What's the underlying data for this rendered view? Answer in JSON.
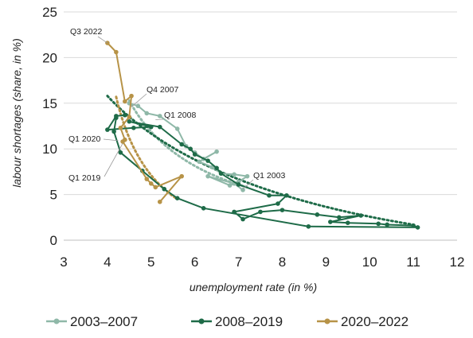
{
  "chart_data": {
    "type": "scatter",
    "xlabel": "unemployment rate (in %)",
    "ylabel": "labour shortages (share, in %)",
    "xlim": [
      3,
      12
    ],
    "ylim": [
      0,
      25
    ],
    "x_ticks": [
      "3",
      "4",
      "5",
      "6",
      "7",
      "8",
      "9",
      "10",
      "11",
      "12"
    ],
    "y_ticks": [
      "0",
      "5",
      "10",
      "15",
      "20",
      "25"
    ],
    "grid": "horizontal",
    "legend_position": "bottom",
    "series": [
      {
        "name": "2003–2007",
        "color": "#8fb8a8",
        "points": [
          [
            4.5,
            15.0
          ],
          [
            4.7,
            14.7
          ],
          [
            4.9,
            13.9
          ],
          [
            5.2,
            13.6
          ],
          [
            5.6,
            12.2
          ],
          [
            5.8,
            10.3
          ],
          [
            6.0,
            9.6
          ],
          [
            6.2,
            8.9
          ],
          [
            6.5,
            9.7
          ],
          [
            6.1,
            8.6
          ],
          [
            6.4,
            8.0
          ],
          [
            6.6,
            7.3
          ],
          [
            6.9,
            7.2
          ],
          [
            7.2,
            7.0
          ],
          [
            7.0,
            6.4
          ],
          [
            6.8,
            6.0
          ],
          [
            6.3,
            7.0
          ],
          [
            6.9,
            6.2
          ],
          [
            7.1,
            5.5
          ]
        ],
        "trend": [
          [
            4.5,
            15.3
          ],
          [
            7.2,
            5.8
          ]
        ]
      },
      {
        "name": "2008–2019",
        "color": "#1e6b48",
        "points": [
          [
            4.4,
            13.7
          ],
          [
            4.2,
            13.6
          ],
          [
            4.0,
            12.1
          ],
          [
            4.6,
            12.3
          ],
          [
            5.0,
            12.4
          ],
          [
            4.5,
            13.0
          ],
          [
            5.2,
            12.4
          ],
          [
            5.7,
            10.5
          ],
          [
            5.9,
            10.0
          ],
          [
            6.0,
            9.4
          ],
          [
            6.3,
            8.7
          ],
          [
            6.5,
            7.9
          ],
          [
            6.6,
            7.3
          ],
          [
            7.0,
            6.1
          ],
          [
            7.7,
            4.9
          ],
          [
            8.1,
            4.9
          ],
          [
            7.9,
            4.0
          ],
          [
            6.9,
            3.1
          ],
          [
            7.1,
            2.3
          ],
          [
            7.5,
            3.1
          ],
          [
            8.0,
            3.3
          ],
          [
            8.8,
            2.8
          ],
          [
            9.3,
            2.5
          ],
          [
            9.8,
            2.7
          ],
          [
            9.1,
            2.0
          ],
          [
            9.5,
            1.9
          ],
          [
            10.2,
            1.8
          ],
          [
            10.4,
            1.7
          ],
          [
            11.0,
            1.6
          ],
          [
            11.1,
            1.4
          ],
          [
            8.6,
            1.5
          ],
          [
            6.2,
            3.5
          ],
          [
            5.6,
            4.6
          ],
          [
            5.3,
            5.6
          ],
          [
            4.8,
            7.6
          ],
          [
            4.3,
            9.6
          ],
          [
            4.15,
            11.9
          ],
          [
            4.2,
            13.4
          ]
        ],
        "trend": [
          [
            4.0,
            15.8
          ],
          [
            11.0,
            1.7
          ]
        ]
      },
      {
        "name": "2020–2022",
        "color": "#b79347",
        "points": [
          [
            4.0,
            21.6
          ],
          [
            4.2,
            20.6
          ],
          [
            4.4,
            15.2
          ],
          [
            4.55,
            15.8
          ],
          [
            4.5,
            13.5
          ],
          [
            4.3,
            12.3
          ],
          [
            4.4,
            11.0
          ],
          [
            4.35,
            10.8
          ],
          [
            4.9,
            6.7
          ],
          [
            5.0,
            6.2
          ],
          [
            5.1,
            5.8
          ],
          [
            5.7,
            7.0
          ],
          [
            5.2,
            4.2
          ]
        ],
        "trend": [
          [
            4.2,
            15.7
          ],
          [
            5.6,
            4.5
          ]
        ]
      }
    ],
    "annotations": [
      {
        "text": "Q3 2022",
        "at": [
          4.0,
          21.6
        ]
      },
      {
        "text": "Q4 2007",
        "at": [
          4.55,
          14.6
        ]
      },
      {
        "text": "Q1 2008",
        "at": [
          5.1,
          13.2
        ]
      },
      {
        "text": "Q1 2020",
        "at": [
          4.25,
          10.9
        ]
      },
      {
        "text": "Q1 2019",
        "at": [
          4.35,
          10.6
        ]
      },
      {
        "text": "Q1 2003",
        "at": [
          7.1,
          5.6
        ]
      }
    ]
  }
}
